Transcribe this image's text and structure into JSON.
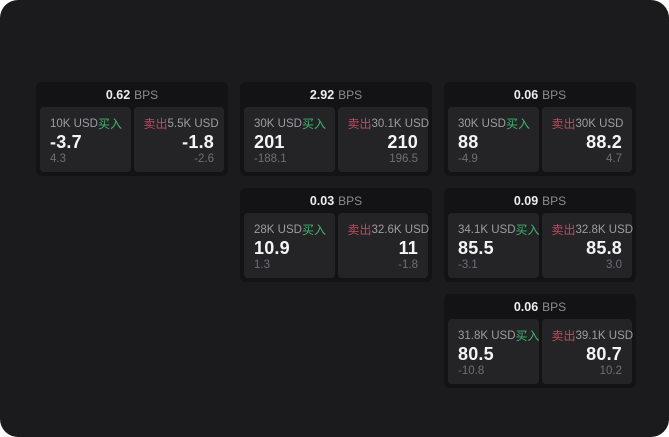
{
  "labels": {
    "bps": "BPS",
    "buy": "买入",
    "sell": "卖出"
  },
  "colors": {
    "buy": "#3eb56d",
    "sell": "#c04a5e",
    "page_bg": "#1b1b1d",
    "card_bg": "#131315",
    "panel_bg": "#242427"
  },
  "cards": [
    {
      "row": 1,
      "col": 1,
      "bps": "0.62",
      "buy": {
        "size": "10K USD",
        "value": "-3.7",
        "delta": "4.3"
      },
      "sell": {
        "size": "5.5K USD",
        "value": "-1.8",
        "delta": "-2.6"
      }
    },
    {
      "row": 1,
      "col": 2,
      "bps": "2.92",
      "buy": {
        "size": "30K USD",
        "value": "201",
        "delta": "-188.1"
      },
      "sell": {
        "size": "30.1K USD",
        "value": "210",
        "delta": "196.5"
      }
    },
    {
      "row": 1,
      "col": 3,
      "bps": "0.06",
      "buy": {
        "size": "30K USD",
        "value": "88",
        "delta": "-4.9"
      },
      "sell": {
        "size": "30K USD",
        "value": "88.2",
        "delta": "4.7"
      }
    },
    {
      "row": 2,
      "col": 2,
      "bps": "0.03",
      "buy": {
        "size": "28K USD",
        "value": "10.9",
        "delta": "1.3"
      },
      "sell": {
        "size": "32.6K USD",
        "value": "11",
        "delta": "-1.8"
      }
    },
    {
      "row": 2,
      "col": 3,
      "bps": "0.09",
      "buy": {
        "size": "34.1K USD",
        "value": "85.5",
        "delta": "-3.1"
      },
      "sell": {
        "size": "32.8K USD",
        "value": "85.8",
        "delta": "3.0"
      }
    },
    {
      "row": 3,
      "col": 3,
      "bps": "0.06",
      "buy": {
        "size": "31.8K USD",
        "value": "80.5",
        "delta": "-10.8"
      },
      "sell": {
        "size": "39.1K USD",
        "value": "80.7",
        "delta": "10.2"
      }
    }
  ]
}
